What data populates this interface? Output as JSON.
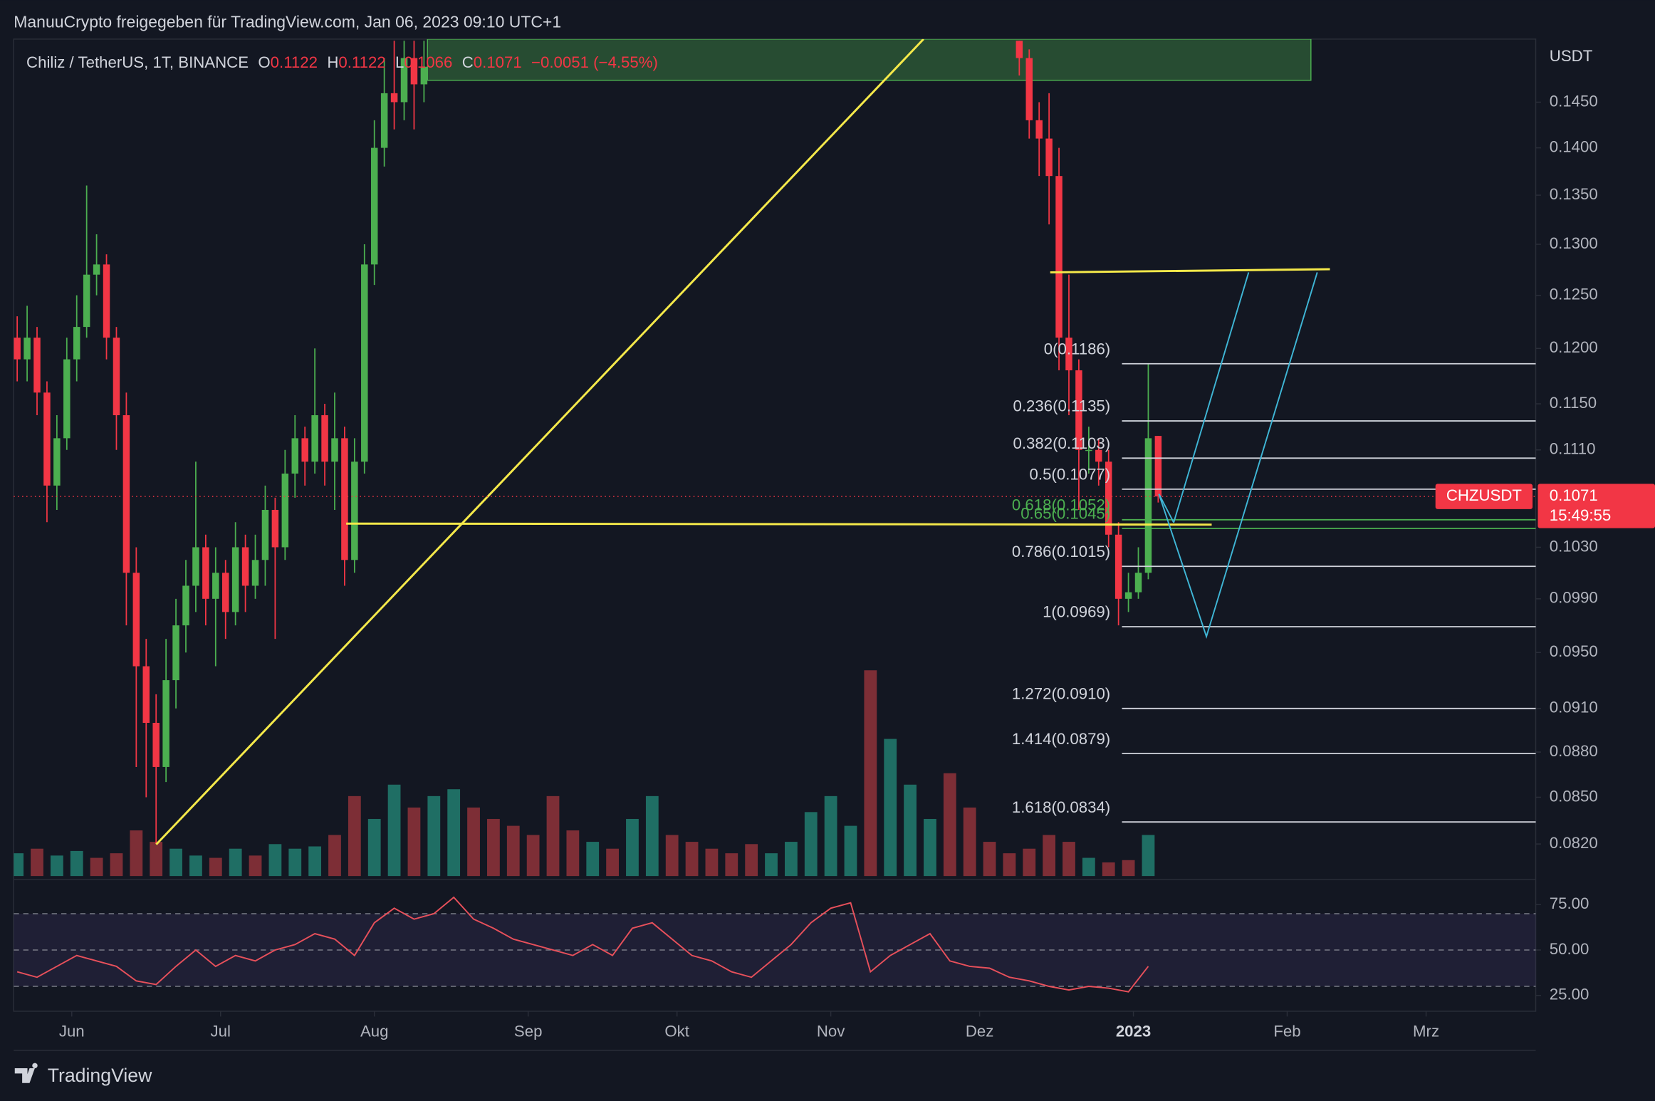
{
  "chart_data": {
    "type": "candlestick",
    "header": "ManuuCrypto freigegeben für TradingView.com, Jan 06, 2023 09:10 UTC+1",
    "title": "Chiliz / TetherUS, 1T, BINANCE",
    "ohlc_labels": [
      "O",
      "H",
      "L",
      "C"
    ],
    "change_label": "−0.0051 (−4.55%)",
    "symbol": "CHZUSDT",
    "countdown": "15:49:55",
    "y_unit": "USDT",
    "brand": "TradingView",
    "log_scale": true,
    "grid": false,
    "colors": {
      "up": "#4caf50",
      "down": "#f23645"
    },
    "x": [
      -11,
      -9,
      -7,
      -5,
      -3,
      -1,
      1,
      3,
      5,
      7,
      9,
      11,
      13,
      15,
      17,
      19,
      21,
      23,
      25,
      27,
      29,
      31,
      33,
      35,
      37,
      39,
      41,
      43,
      45,
      47,
      49,
      51,
      53,
      55,
      57,
      59,
      61,
      63,
      65,
      67,
      69,
      71,
      191,
      193,
      195,
      197,
      199,
      201,
      203,
      205,
      207,
      209,
      211,
      213,
      215,
      217,
      219
    ],
    "open": [
      0.121,
      0.119,
      0.121,
      0.116,
      0.108,
      0.112,
      0.119,
      0.122,
      0.127,
      0.128,
      0.121,
      0.114,
      0.101,
      0.094,
      0.09,
      0.087,
      0.093,
      0.097,
      0.1,
      0.103,
      0.099,
      0.101,
      0.098,
      0.103,
      0.1,
      0.102,
      0.106,
      0.103,
      0.109,
      0.112,
      0.11,
      0.114,
      0.11,
      0.112,
      0.102,
      0.11,
      0.128,
      0.14,
      0.146,
      0.145,
      0.15,
      0.147,
      0.152,
      0.15,
      0.143,
      0.141,
      0.137,
      0.121,
      0.118,
      0.111,
      0.111,
      0.11,
      0.104,
      0.099,
      0.0995,
      0.101,
      0.1122
    ],
    "high": [
      0.123,
      0.124,
      0.122,
      0.117,
      0.114,
      0.121,
      0.125,
      0.136,
      0.131,
      0.129,
      0.122,
      0.116,
      0.103,
      0.096,
      0.092,
      0.096,
      0.099,
      0.102,
      0.11,
      0.104,
      0.103,
      0.102,
      0.105,
      0.104,
      0.104,
      0.108,
      0.107,
      0.111,
      0.114,
      0.113,
      0.12,
      0.115,
      0.116,
      0.113,
      0.112,
      0.13,
      0.143,
      0.15,
      0.152,
      0.152,
      0.152,
      0.152,
      0.152,
      0.151,
      0.145,
      0.146,
      0.14,
      0.127,
      0.119,
      0.113,
      0.112,
      0.111,
      0.105,
      0.101,
      0.103,
      0.1186,
      0.1122
    ],
    "low": [
      0.117,
      0.117,
      0.114,
      0.105,
      0.106,
      0.111,
      0.117,
      0.121,
      0.125,
      0.119,
      0.111,
      0.097,
      0.087,
      0.085,
      0.082,
      0.086,
      0.091,
      0.095,
      0.098,
      0.097,
      0.094,
      0.096,
      0.097,
      0.098,
      0.099,
      0.1,
      0.096,
      0.102,
      0.107,
      0.108,
      0.109,
      0.108,
      0.106,
      0.1,
      0.101,
      0.109,
      0.126,
      0.138,
      0.142,
      0.143,
      0.142,
      0.145,
      0.148,
      0.141,
      0.137,
      0.132,
      0.118,
      0.114,
      0.106,
      0.109,
      0.108,
      0.103,
      0.097,
      0.098,
      0.099,
      0.1005,
      0.1066
    ],
    "close": [
      0.119,
      0.121,
      0.116,
      0.108,
      0.112,
      0.119,
      0.122,
      0.127,
      0.128,
      0.121,
      0.114,
      0.101,
      0.094,
      0.09,
      0.087,
      0.093,
      0.097,
      0.1,
      0.103,
      0.099,
      0.101,
      0.098,
      0.103,
      0.1,
      0.102,
      0.106,
      0.103,
      0.109,
      0.112,
      0.11,
      0.114,
      0.11,
      0.112,
      0.102,
      0.11,
      0.128,
      0.14,
      0.146,
      0.145,
      0.15,
      0.147,
      0.149,
      0.15,
      0.143,
      0.141,
      0.137,
      0.121,
      0.118,
      0.111,
      0.111,
      0.11,
      0.104,
      0.099,
      0.0995,
      0.101,
      0.112,
      0.1071
    ],
    "xlim": [
      -11.7,
      295.1
    ],
    "xticks": [
      {
        "value": 0,
        "label": "Jun"
      },
      {
        "value": 30,
        "label": "Jul"
      },
      {
        "value": 61,
        "label": "Aug"
      },
      {
        "value": 92,
        "label": "Sep"
      },
      {
        "value": 122,
        "label": "Okt"
      },
      {
        "value": 153,
        "label": "Nov"
      },
      {
        "value": 183,
        "label": "Dez"
      },
      {
        "value": 214,
        "label": "2023",
        "bold": true
      },
      {
        "value": 245,
        "label": "Feb"
      },
      {
        "value": 273,
        "label": "Mrz"
      }
    ],
    "ylim": [
      0.08,
      0.1522
    ],
    "yticks": [
      {
        "value": 0.145,
        "label": "0.1450"
      },
      {
        "value": 0.14,
        "label": "0.1400"
      },
      {
        "value": 0.135,
        "label": "0.1350"
      },
      {
        "value": 0.13,
        "label": "0.1300"
      },
      {
        "value": 0.125,
        "label": "0.1250"
      },
      {
        "value": 0.12,
        "label": "0.1200"
      },
      {
        "value": 0.115,
        "label": "0.1150"
      },
      {
        "value": 0.111,
        "label": "0.1110"
      },
      {
        "value": 0.103,
        "label": "0.1030"
      },
      {
        "value": 0.099,
        "label": "0.0990"
      },
      {
        "value": 0.095,
        "label": "0.0950"
      },
      {
        "value": 0.091,
        "label": "0.0910"
      },
      {
        "value": 0.088,
        "label": "0.0880"
      },
      {
        "value": 0.085,
        "label": "0.0850"
      },
      {
        "value": 0.082,
        "label": "0.0820"
      }
    ],
    "fib_levels": [
      {
        "label": "0(0.1186)",
        "value": 0.1186,
        "color": "#d1d4dc"
      },
      {
        "label": "0.236(0.1135)",
        "value": 0.1135,
        "color": "#d1d4dc"
      },
      {
        "label": "0.382(0.1103)",
        "value": 0.1103,
        "color": "#d1d4dc"
      },
      {
        "label": "0.5(0.1077)",
        "value": 0.1077,
        "color": "#d1d4dc"
      },
      {
        "label": "0.618(0.1052)",
        "value": 0.1052,
        "color": "#4caf50"
      },
      {
        "label": "0.65(0.1045)",
        "value": 0.1045,
        "color": "#4caf50"
      },
      {
        "label": "0.786(0.1015)",
        "value": 0.1015,
        "color": "#d1d4dc"
      },
      {
        "label": "1(0.0969)",
        "value": 0.0969,
        "color": "#d1d4dc"
      },
      {
        "label": "1.272(0.0910)",
        "value": 0.091,
        "color": "#d1d4dc"
      },
      {
        "label": "1.414(0.0879)",
        "value": 0.0879,
        "color": "#d1d4dc"
      },
      {
        "label": "1.618(0.0834)",
        "value": 0.0834,
        "color": "#d1d4dc"
      }
    ],
    "volume": {
      "x": [
        -11,
        -7,
        -3,
        1,
        5,
        9,
        13,
        17,
        21,
        25,
        29,
        33,
        37,
        41,
        45,
        49,
        53,
        57,
        61,
        65,
        69,
        73,
        77,
        81,
        85,
        89,
        93,
        97,
        101,
        105,
        109,
        113,
        117,
        121,
        125,
        129,
        133,
        137,
        141,
        145,
        149,
        153,
        157,
        161,
        165,
        169,
        173,
        177,
        181,
        185,
        189,
        193,
        197,
        201,
        205,
        209,
        213,
        217
      ],
      "values": [
        10,
        12,
        9,
        11,
        8,
        10,
        20,
        15,
        12,
        9,
        8,
        12,
        9,
        14,
        12,
        13,
        18,
        35,
        25,
        40,
        30,
        35,
        38,
        30,
        25,
        22,
        18,
        35,
        20,
        15,
        12,
        25,
        35,
        18,
        15,
        12,
        10,
        14,
        10,
        15,
        28,
        35,
        22,
        90,
        60,
        40,
        25,
        45,
        30,
        15,
        10,
        12,
        18,
        15,
        8,
        6,
        7,
        18
      ],
      "colors": {
        "up": "#1f6e64",
        "down": "#7d2e36"
      }
    },
    "rsi": {
      "type": "line",
      "color": "#e8505b",
      "x": [
        -11,
        -7,
        -3,
        1,
        5,
        9,
        13,
        17,
        21,
        25,
        29,
        33,
        37,
        41,
        45,
        49,
        53,
        57,
        61,
        65,
        69,
        73,
        77,
        81,
        85,
        89,
        93,
        97,
        101,
        105,
        109,
        113,
        117,
        121,
        125,
        129,
        133,
        137,
        141,
        145,
        149,
        153,
        157,
        161,
        165,
        169,
        173,
        177,
        181,
        185,
        189,
        193,
        197,
        201,
        205,
        209,
        213,
        217
      ],
      "values": [
        38,
        35,
        41,
        47,
        44,
        41,
        33,
        31,
        41,
        50,
        41,
        47,
        44,
        50,
        53,
        59,
        56,
        47,
        65,
        73,
        67,
        70,
        79,
        67,
        62,
        56,
        53,
        50,
        47,
        53,
        47,
        62,
        65,
        56,
        47,
        44,
        38,
        35,
        44,
        53,
        65,
        73,
        76,
        38,
        47,
        53,
        59,
        44,
        41,
        40,
        35,
        33,
        30,
        28,
        30,
        29,
        27,
        41
      ],
      "ylim": [
        16.3,
        86.6
      ],
      "yticks": [
        {
          "value": 75,
          "label": "75.00"
        },
        {
          "value": 50,
          "label": "50.00"
        },
        {
          "value": 25,
          "label": "25.00"
        }
      ],
      "bands": [
        30,
        50,
        70
      ]
    }
  }
}
